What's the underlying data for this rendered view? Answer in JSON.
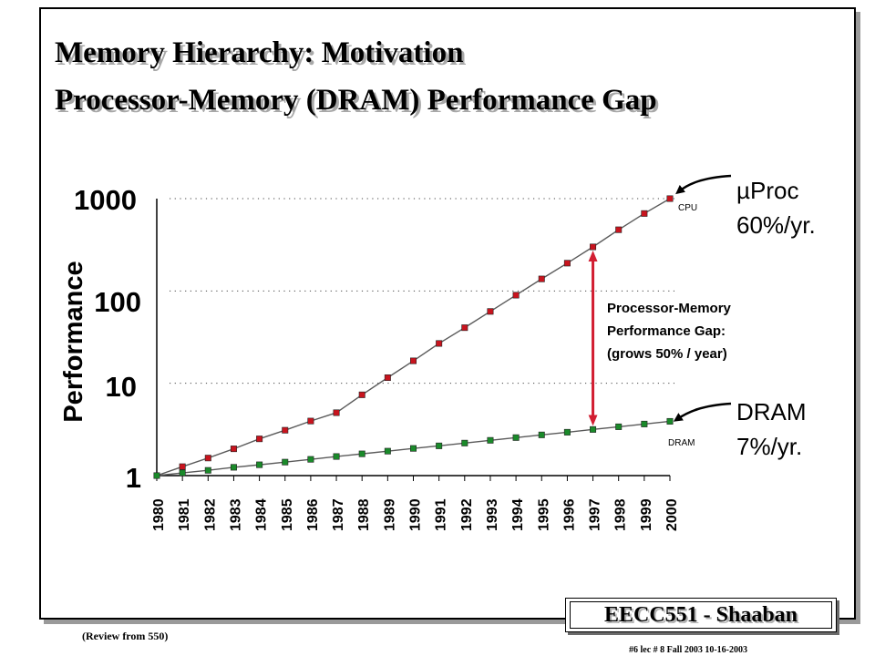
{
  "slide": {
    "title_line1": "Memory Hierarchy:  Motivation",
    "title_line2": "Processor-Memory (DRAM) Performance Gap",
    "footer_label": "EECC551 - Shaaban",
    "review_note": "(Review from 550)",
    "slide_info": "#6   lec # 8   Fall 2003  10-16-2003"
  },
  "chart_data": {
    "type": "line",
    "ylabel": "Performance",
    "y_scale": "log",
    "ylim": [
      1,
      1000
    ],
    "y_ticks": [
      "1",
      "10",
      "100",
      "1000"
    ],
    "x": [
      "1980",
      "1981",
      "1982",
      "1983",
      "1984",
      "1985",
      "1986",
      "1987",
      "1988",
      "1989",
      "1990",
      "1991",
      "1992",
      "1993",
      "1994",
      "1995",
      "1996",
      "1997",
      "1998",
      "1999",
      "2000"
    ],
    "grid": "dotted horizontal at 10, 100, 1000",
    "series": [
      {
        "name": "CPU",
        "color": "#c8141e",
        "values": [
          1,
          1.25,
          1.55,
          1.95,
          2.5,
          3.1,
          3.9,
          4.8,
          7.5,
          11.5,
          17.5,
          27,
          40,
          60,
          90,
          135,
          200,
          300,
          460,
          690,
          1000
        ]
      },
      {
        "name": "DRAM",
        "color": "#1a8a2a",
        "values": [
          1,
          1.07,
          1.14,
          1.23,
          1.31,
          1.4,
          1.5,
          1.61,
          1.72,
          1.84,
          1.97,
          2.1,
          2.25,
          2.41,
          2.58,
          2.76,
          2.95,
          3.16,
          3.38,
          3.62,
          3.87
        ]
      }
    ],
    "annotations": {
      "cpu_rate_line1": "µProc",
      "cpu_rate_line2": "60%/yr.",
      "dram_rate_line1": "DRAM",
      "dram_rate_line2": "7%/yr.",
      "gap_line1": "Processor-Memory",
      "gap_line2": "Performance Gap:",
      "gap_line3": "(grows 50% / year)",
      "gap_year": "1997",
      "gap_color": "#d21e32"
    }
  }
}
